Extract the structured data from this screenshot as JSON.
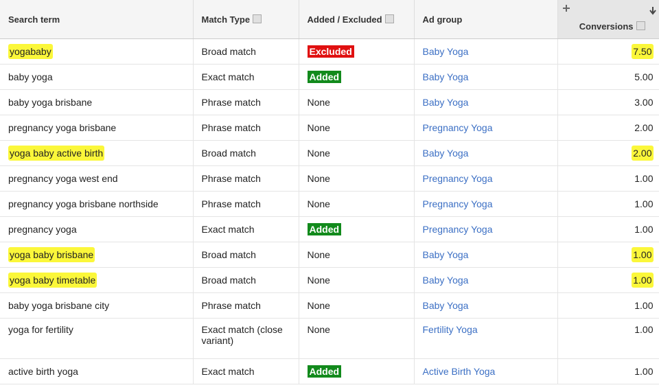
{
  "table": {
    "headers": [
      "Search term",
      "Match Type",
      "Added / Excluded",
      "Ad group",
      "Conversions"
    ],
    "rows": [
      [
        "yogababy",
        "Broad match",
        "Excluded",
        "Baby Yoga",
        "7.50"
      ],
      [
        "baby yoga",
        "Exact match",
        "Added",
        "Baby Yoga",
        "5.00"
      ],
      [
        "baby yoga brisbane",
        "Phrase match",
        "None",
        "Baby Yoga",
        "3.00"
      ],
      [
        "pregnancy yoga brisbane",
        "Phrase match",
        "None",
        "Pregnancy Yoga",
        "2.00"
      ],
      [
        "yoga baby active birth",
        "Broad match",
        "None",
        "Baby Yoga",
        "2.00"
      ],
      [
        "pregnancy yoga west end",
        "Phrase match",
        "None",
        "Pregnancy Yoga",
        "1.00"
      ],
      [
        "pregnancy yoga brisbane northside",
        "Phrase match",
        "None",
        "Pregnancy Yoga",
        "1.00"
      ],
      [
        "pregnancy yoga",
        "Exact match",
        "Added",
        "Pregnancy Yoga",
        "1.00"
      ],
      [
        "yoga baby brisbane",
        "Broad match",
        "None",
        "Baby Yoga",
        "1.00"
      ],
      [
        "yoga baby timetable",
        "Broad match",
        "None",
        "Baby Yoga",
        "1.00"
      ],
      [
        "baby yoga brisbane city",
        "Phrase match",
        "None",
        "Baby Yoga",
        "1.00"
      ],
      [
        "yoga for fertility",
        "Exact match (close variant)",
        "None",
        "Fertility Yoga",
        "1.00"
      ],
      [
        "active birth yoga",
        "Exact match",
        "Added",
        "Active Birth Yoga",
        "1.00"
      ]
    ]
  }
}
